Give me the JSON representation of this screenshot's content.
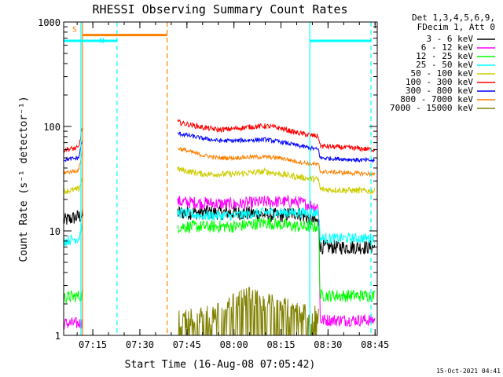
{
  "chart_data": {
    "type": "line",
    "title": "RHESSI Observing Summary Count Rates",
    "xlabel": "Start Time (16-Aug-08 07:05:42)",
    "ylabel": "Count Rate (s⁻¹ detector⁻¹)",
    "x_unit": "UT time (HH:MM)",
    "x_range": [
      "07:05:42",
      "08:45:42"
    ],
    "y_scale": "log",
    "ylim": [
      1,
      1000
    ],
    "x_ticks": [
      "07:15",
      "07:30",
      "07:45",
      "08:00",
      "08:15",
      "08:30",
      "08:45"
    ],
    "y_ticks": [
      "1",
      "10",
      "100",
      "1000"
    ],
    "grid": false,
    "legend_position": "right",
    "legend_header": [
      "Det 1,3,4,5,6,9,",
      "FDecim 1, Att 0"
    ],
    "footer": "15-Oct-2021 04:41",
    "gaps": [
      [
        "07:12:00",
        "07:42:00"
      ]
    ],
    "series": [
      {
        "name": "3 - 6 keV",
        "color": "#000000",
        "noise": 0.07,
        "points": [
          [
            "07:05:42",
            12.5
          ],
          [
            "07:11:30",
            14
          ],
          [
            "07:42:00",
            15
          ],
          [
            "08:00:00",
            15
          ],
          [
            "08:15:00",
            14
          ],
          [
            "08:20:00",
            15
          ],
          [
            "08:27:00",
            12
          ],
          [
            "08:27:30",
            7
          ],
          [
            "08:45:00",
            7
          ]
        ]
      },
      {
        "name": "6 - 12 keV",
        "color": "#ff00ff",
        "noise": 0.06,
        "points": [
          [
            "07:05:42",
            1.3
          ],
          [
            "07:11:30",
            1.3
          ],
          [
            "07:42:00",
            19
          ],
          [
            "08:00:00",
            18
          ],
          [
            "08:10:00",
            19
          ],
          [
            "08:20:00",
            19
          ],
          [
            "08:27:00",
            17
          ],
          [
            "08:27:30",
            1.4
          ],
          [
            "08:45:00",
            1.4
          ]
        ]
      },
      {
        "name": "12 - 25 keV",
        "color": "#00ff00",
        "noise": 0.06,
        "points": [
          [
            "07:05:42",
            2.3
          ],
          [
            "07:11:30",
            2.4
          ],
          [
            "07:42:00",
            11
          ],
          [
            "08:00:00",
            11
          ],
          [
            "08:10:00",
            12
          ],
          [
            "08:20:00",
            11
          ],
          [
            "08:27:00",
            11
          ],
          [
            "08:27:30",
            2.4
          ],
          [
            "08:45:00",
            2.4
          ]
        ]
      },
      {
        "name": "25 - 50 keV",
        "color": "#00ffff",
        "noise": 0.05,
        "points": [
          [
            "07:05:42",
            8
          ],
          [
            "07:10:30",
            8.5
          ],
          [
            "07:11:30",
            11
          ],
          [
            "07:42:00",
            15
          ],
          [
            "07:50:00",
            14
          ],
          [
            "08:00:00",
            14
          ],
          [
            "08:10:00",
            15
          ],
          [
            "08:20:00",
            15
          ],
          [
            "08:27:00",
            15
          ],
          [
            "08:27:30",
            8.5
          ],
          [
            "08:45:00",
            8.5
          ]
        ]
      },
      {
        "name": "50 - 100 keV",
        "color": "#cccc00",
        "noise": 0.03,
        "points": [
          [
            "07:05:42",
            24
          ],
          [
            "07:10:30",
            25
          ],
          [
            "07:11:30",
            31
          ],
          [
            "07:42:00",
            39
          ],
          [
            "07:50:00",
            35
          ],
          [
            "08:00:00",
            35
          ],
          [
            "08:05:00",
            36
          ],
          [
            "08:10:00",
            37
          ],
          [
            "08:15:00",
            35
          ],
          [
            "08:20:00",
            33
          ],
          [
            "08:27:00",
            31
          ],
          [
            "08:27:30",
            25
          ],
          [
            "08:45:00",
            24
          ]
        ]
      },
      {
        "name": "100 - 300 keV",
        "color": "#ff0000",
        "noise": 0.025,
        "points": [
          [
            "07:05:42",
            60
          ],
          [
            "07:10:30",
            62
          ],
          [
            "07:11:30",
            95
          ],
          [
            "07:42:00",
            110
          ],
          [
            "07:50:00",
            98
          ],
          [
            "07:55:00",
            93
          ],
          [
            "08:00:00",
            95
          ],
          [
            "08:05:00",
            99
          ],
          [
            "08:10:00",
            101
          ],
          [
            "08:15:00",
            96
          ],
          [
            "08:20:00",
            87
          ],
          [
            "08:27:00",
            80
          ],
          [
            "08:27:30",
            65
          ],
          [
            "08:45:00",
            60
          ]
        ]
      },
      {
        "name": "300 - 800 keV",
        "color": "#0000ff",
        "noise": 0.02,
        "points": [
          [
            "07:05:42",
            48
          ],
          [
            "07:10:30",
            50
          ],
          [
            "07:11:30",
            72
          ],
          [
            "07:42:00",
            86
          ],
          [
            "07:50:00",
            77
          ],
          [
            "07:55:00",
            73
          ],
          [
            "08:00:00",
            73
          ],
          [
            "08:05:00",
            74
          ],
          [
            "08:10:00",
            75
          ],
          [
            "08:15:00",
            71
          ],
          [
            "08:20:00",
            66
          ],
          [
            "08:27:00",
            60
          ],
          [
            "08:27:30",
            50
          ],
          [
            "08:45:00",
            47
          ]
        ]
      },
      {
        "name": "800 - 7000 keV",
        "color": "#ff8000",
        "noise": 0.02,
        "points": [
          [
            "07:05:42",
            36
          ],
          [
            "07:10:30",
            38
          ],
          [
            "07:11:30",
            56
          ],
          [
            "07:42:00",
            62
          ],
          [
            "07:50:00",
            53
          ],
          [
            "07:55:00",
            50
          ],
          [
            "08:00:00",
            50
          ],
          [
            "08:05:00",
            51
          ],
          [
            "08:10:00",
            51
          ],
          [
            "08:15:00",
            50
          ],
          [
            "08:20:00",
            46
          ],
          [
            "08:27:00",
            43
          ],
          [
            "08:27:30",
            37
          ],
          [
            "08:45:00",
            35
          ]
        ]
      },
      {
        "name": "7000 - 15000 keV",
        "color": "#808000",
        "noise": 0.0,
        "points": [
          [
            "07:42:00",
            1.1
          ],
          [
            "07:51:00",
            1.2
          ],
          [
            "07:57:00",
            1.3
          ],
          [
            "08:00:00",
            1.6
          ],
          [
            "08:05:00",
            1.9
          ],
          [
            "08:10:00",
            1.6
          ],
          [
            "08:15:00",
            1.5
          ],
          [
            "08:20:00",
            1.3
          ],
          [
            "08:27:00",
            1.2
          ]
        ]
      }
    ],
    "annotations": [
      {
        "label": "S",
        "color": "#ff8000",
        "start": "07:11:42",
        "end": "07:38:42",
        "level": 750
      },
      {
        "label": "N",
        "color": "#00ffff",
        "start": "07:05:42",
        "end": "07:22:42",
        "level": 660
      },
      {
        "label": "",
        "color": "#00ffff",
        "start": "08:24:12",
        "end": "08:43:42",
        "level": 660
      }
    ],
    "markers": [
      {
        "time": "07:11:12",
        "color": "#00ffff",
        "style": "solid"
      },
      {
        "time": "07:11:42",
        "color": "#ff8000",
        "style": "solid"
      },
      {
        "time": "07:22:42",
        "color": "#00ffff",
        "style": "dashed"
      },
      {
        "time": "07:38:42",
        "color": "#ff8000",
        "style": "dashed"
      },
      {
        "time": "08:24:12",
        "color": "#00ffff",
        "style": "solid"
      },
      {
        "time": "08:43:42",
        "color": "#00ffff",
        "style": "dashed"
      }
    ]
  }
}
